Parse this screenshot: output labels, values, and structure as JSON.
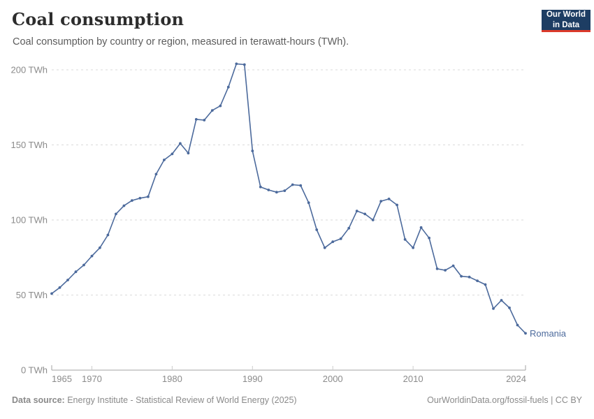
{
  "header": {
    "title": "Coal consumption",
    "subtitle": "Coal consumption by country or region, measured in terawatt-hours (TWh)."
  },
  "logo": {
    "line1": "Our World",
    "line2": "in Data",
    "bg_color": "#1d3d63",
    "accent_color": "#dc3a2b"
  },
  "chart_data": {
    "type": "line",
    "title": "Coal consumption",
    "unit": "TWh",
    "grid": true,
    "legend_position": "end-of-line",
    "ylim": [
      0,
      200
    ],
    "xlim": [
      1965,
      2024
    ],
    "y_ticks": [
      0,
      50,
      100,
      150,
      200
    ],
    "y_tick_labels": [
      "0 TWh",
      "50 TWh",
      "100 TWh",
      "150 TWh",
      "200 TWh"
    ],
    "x_ticks": [
      1965,
      1970,
      1980,
      1990,
      2000,
      2010,
      2024
    ],
    "x_tick_labels": [
      "1965",
      "1970",
      "1980",
      "1990",
      "2000",
      "2010",
      "2024"
    ],
    "x": [
      1965,
      1966,
      1967,
      1968,
      1969,
      1970,
      1971,
      1972,
      1973,
      1974,
      1975,
      1976,
      1977,
      1978,
      1979,
      1980,
      1981,
      1982,
      1983,
      1984,
      1985,
      1986,
      1987,
      1988,
      1989,
      1990,
      1991,
      1992,
      1993,
      1994,
      1995,
      1996,
      1997,
      1998,
      1999,
      2000,
      2001,
      2002,
      2003,
      2004,
      2005,
      2006,
      2007,
      2008,
      2009,
      2010,
      2011,
      2012,
      2013,
      2014,
      2015,
      2016,
      2017,
      2018,
      2019,
      2020,
      2021,
      2022,
      2023,
      2024
    ],
    "series": [
      {
        "name": "Romania",
        "color": "#4c6a9c",
        "values": [
          51,
          55,
          60,
          65.5,
          70,
          76,
          81.5,
          90,
          104,
          109.5,
          113,
          114.5,
          115.5,
          130.5,
          140,
          144,
          151,
          144.5,
          167,
          166.5,
          173,
          176,
          188.5,
          204,
          203.5,
          146,
          122,
          120,
          118.5,
          119.5,
          123.5,
          123,
          111.5,
          93.5,
          81.5,
          85.5,
          87.5,
          94.5,
          106,
          104,
          100,
          112.5,
          114,
          110,
          87,
          81.5,
          95,
          88,
          67.5,
          66.5,
          69.5,
          62.5,
          62,
          59.5,
          57,
          41,
          46.5,
          41.5,
          30,
          24.5
        ]
      }
    ]
  },
  "colors": {
    "line": "#4c6a9c",
    "gridline": "#dadada",
    "axis_line": "#a3a3a3",
    "tick_text": "#8b8b8b",
    "entity_label": "#4c6a9c"
  },
  "footer": {
    "source_label": "Data source:",
    "source_text": " Energy Institute - Statistical Review of World Energy (2025)",
    "right_text": "OurWorldinData.org/fossil-fuels | CC BY"
  }
}
